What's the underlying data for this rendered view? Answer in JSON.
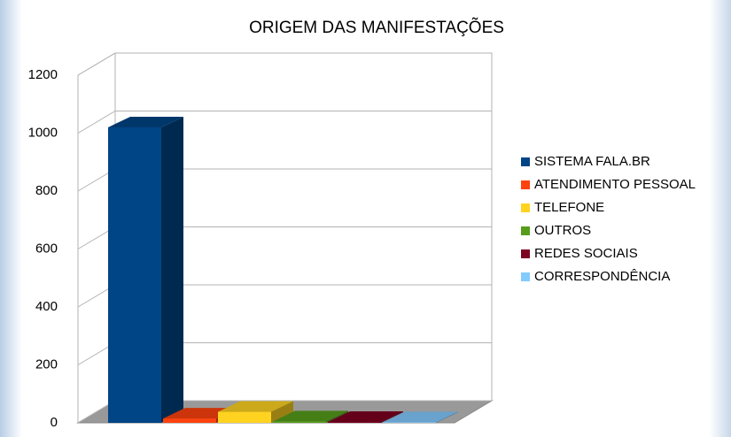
{
  "chart_data": {
    "type": "bar3d",
    "title": "ORIGEM DAS MANIFESTAÇÕES",
    "categories": [
      null
    ],
    "series": [
      {
        "name": " SISTEMA FALA.BR",
        "color": "#004586",
        "values": [
          1020
        ]
      },
      {
        "name": "ATENDIMENTO PESSOAL",
        "color": "#ff420e",
        "values": [
          15
        ]
      },
      {
        "name": "TELEFONE",
        "color": "#ffd320",
        "values": [
          38
        ]
      },
      {
        "name": "OUTROS",
        "color": "#579d1c",
        "values": [
          5
        ]
      },
      {
        "name": "REDES SOCIAIS",
        "color": "#7e0021",
        "values": [
          3
        ]
      },
      {
        "name": "CORRESPONDÊNCIA",
        "color": "#83caff",
        "values": [
          2
        ]
      }
    ],
    "ylim": [
      0,
      1200
    ],
    "yticks": [
      0,
      200,
      400,
      600,
      800,
      1000,
      1200
    ],
    "grid": true,
    "legend": "right"
  }
}
